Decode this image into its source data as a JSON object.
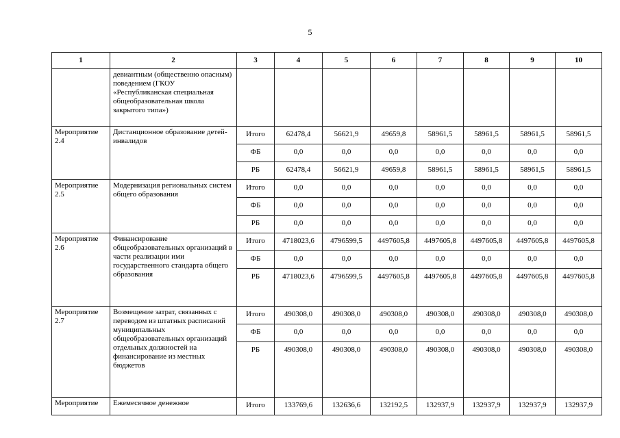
{
  "page_number": "5",
  "header": [
    "1",
    "2",
    "3",
    "4",
    "5",
    "6",
    "7",
    "8",
    "9",
    "10"
  ],
  "continuation_text": "девиантным (общественно опасным) поведением (ГКОУ «Республиканская специальная общеобразовательная школа закрытого типа»)",
  "rows": [
    {
      "label": "Мероприятие 2.4",
      "name": "Дистанционное образование детей-инвалидов",
      "sub": [
        {
          "src": "Итого",
          "v": [
            "62478,4",
            "56621,9",
            "49659,8",
            "58961,5",
            "58961,5",
            "58961,5",
            "58961,5"
          ]
        },
        {
          "src": "ФБ",
          "v": [
            "0,0",
            "0,0",
            "0,0",
            "0,0",
            "0,0",
            "0,0",
            "0,0"
          ]
        },
        {
          "src": "РБ",
          "v": [
            "62478,4",
            "56621,9",
            "49659,8",
            "58961,5",
            "58961,5",
            "58961,5",
            "58961,5"
          ]
        }
      ]
    },
    {
      "label": "Мероприятие 2.5",
      "name": "Модернизация региональных систем  общего образования",
      "sub": [
        {
          "src": "Итого",
          "v": [
            "0,0",
            "0,0",
            "0,0",
            "0,0",
            "0,0",
            "0,0",
            "0,0"
          ]
        },
        {
          "src": "ФБ",
          "v": [
            "0,0",
            "0,0",
            "0,0",
            "0,0",
            "0,0",
            "0,0",
            "0,0"
          ]
        },
        {
          "src": "РБ",
          "v": [
            "0,0",
            "0,0",
            "0,0",
            "0,0",
            "0,0",
            "0,0",
            "0,0"
          ]
        }
      ]
    },
    {
      "label": "Мероприятие 2.6",
      "name": "Финансирование общеобразовательных организаций в части реализации ими государственного стандарта общего образования",
      "sub": [
        {
          "src": "Итого",
          "v": [
            "4718023,6",
            "4796599,5",
            "4497605,8",
            "4497605,8",
            "4497605,8",
            "4497605,8",
            "4497605,8"
          ]
        },
        {
          "src": "ФБ",
          "v": [
            "0,0",
            "0,0",
            "0,0",
            "0,0",
            "0,0",
            "0,0",
            "0,0"
          ]
        },
        {
          "src": "РБ",
          "v": [
            "4718023,6",
            "4796599,5",
            "4497605,8",
            "4497605,8",
            "4497605,8",
            "4497605,8",
            "4497605,8"
          ]
        }
      ]
    },
    {
      "label": "Мероприятие 2.7",
      "name": "Возмещение затрат, связанных с переводом из штатных расписаний муниципальных общеобразовательных организаций отдельных должностей на финансирование из местных бюджетов",
      "sub": [
        {
          "src": "Итого",
          "v": [
            "490308,0",
            "490308,0",
            "490308,0",
            "490308,0",
            "490308,0",
            "490308,0",
            "490308,0"
          ]
        },
        {
          "src": "ФБ",
          "v": [
            "0,0",
            "0,0",
            "0,0",
            "0,0",
            "0,0",
            "0,0",
            "0,0"
          ]
        },
        {
          "src": "РБ",
          "v": [
            "490308,0",
            "490308,0",
            "490308,0",
            "490308,0",
            "490308,0",
            "490308,0",
            "490308,0"
          ]
        }
      ]
    },
    {
      "label": "Мероприятие",
      "name": "Ежемесячное денежное",
      "sub": [
        {
          "src": "Итого",
          "v": [
            "133769,6",
            "132636,6",
            "132192,5",
            "132937,9",
            "132937,9",
            "132937,9",
            "132937,9"
          ]
        }
      ]
    }
  ]
}
